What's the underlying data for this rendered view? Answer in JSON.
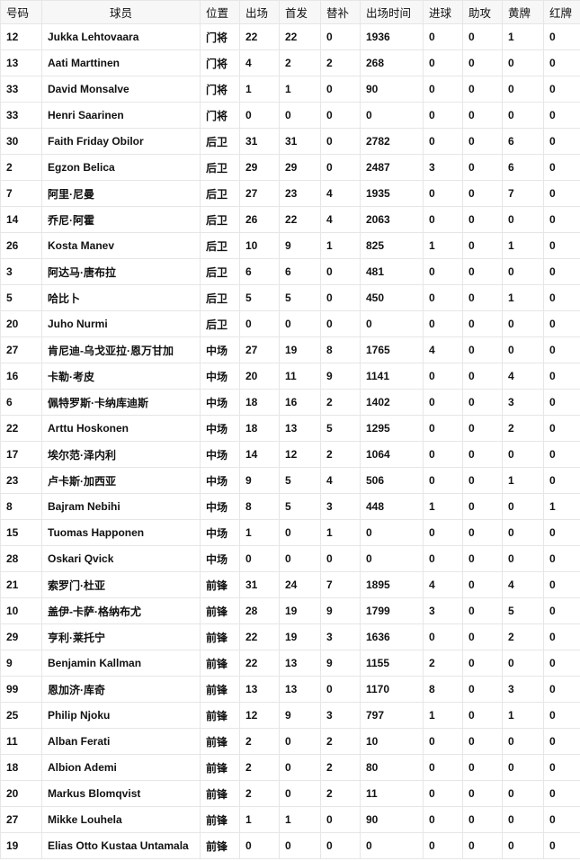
{
  "headers": [
    "号码",
    "球员",
    "位置",
    "出场",
    "首发",
    "替补",
    "出场时间",
    "进球",
    "助攻",
    "黄牌",
    "红牌"
  ],
  "rows": [
    [
      "12",
      "Jukka Lehtovaara",
      "门将",
      "22",
      "22",
      "0",
      "1936",
      "0",
      "0",
      "1",
      "0"
    ],
    [
      "13",
      "Aati Marttinen",
      "门将",
      "4",
      "2",
      "2",
      "268",
      "0",
      "0",
      "0",
      "0"
    ],
    [
      "33",
      "David Monsalve",
      "门将",
      "1",
      "1",
      "0",
      "90",
      "0",
      "0",
      "0",
      "0"
    ],
    [
      "33",
      "Henri Saarinen",
      "门将",
      "0",
      "0",
      "0",
      "0",
      "0",
      "0",
      "0",
      "0"
    ],
    [
      "30",
      "Faith Friday Obilor",
      "后卫",
      "31",
      "31",
      "0",
      "2782",
      "0",
      "0",
      "6",
      "0"
    ],
    [
      "2",
      "Egzon Belica",
      "后卫",
      "29",
      "29",
      "0",
      "2487",
      "3",
      "0",
      "6",
      "0"
    ],
    [
      "7",
      "阿里·尼曼",
      "后卫",
      "27",
      "23",
      "4",
      "1935",
      "0",
      "0",
      "7",
      "0"
    ],
    [
      "14",
      "乔尼·阿霍",
      "后卫",
      "26",
      "22",
      "4",
      "2063",
      "0",
      "0",
      "0",
      "0"
    ],
    [
      "26",
      "Kosta Manev",
      "后卫",
      "10",
      "9",
      "1",
      "825",
      "1",
      "0",
      "1",
      "0"
    ],
    [
      "3",
      "阿达马·唐布拉",
      "后卫",
      "6",
      "6",
      "0",
      "481",
      "0",
      "0",
      "0",
      "0"
    ],
    [
      "5",
      "哈比卜",
      "后卫",
      "5",
      "5",
      "0",
      "450",
      "0",
      "0",
      "1",
      "0"
    ],
    [
      "20",
      "Juho Nurmi",
      "后卫",
      "0",
      "0",
      "0",
      "0",
      "0",
      "0",
      "0",
      "0"
    ],
    [
      "27",
      "肯尼迪-乌戈亚拉·恩万甘加",
      "中场",
      "27",
      "19",
      "8",
      "1765",
      "4",
      "0",
      "0",
      "0"
    ],
    [
      "16",
      "卡勒·考皮",
      "中场",
      "20",
      "11",
      "9",
      "1141",
      "0",
      "0",
      "4",
      "0"
    ],
    [
      "6",
      "佩特罗斯·卡纳库迪斯",
      "中场",
      "18",
      "16",
      "2",
      "1402",
      "0",
      "0",
      "3",
      "0"
    ],
    [
      "22",
      "Arttu Hoskonen",
      "中场",
      "18",
      "13",
      "5",
      "1295",
      "0",
      "0",
      "2",
      "0"
    ],
    [
      "17",
      "埃尔范·泽内利",
      "中场",
      "14",
      "12",
      "2",
      "1064",
      "0",
      "0",
      "0",
      "0"
    ],
    [
      "23",
      "卢卡斯·加西亚",
      "中场",
      "9",
      "5",
      "4",
      "506",
      "0",
      "0",
      "1",
      "0"
    ],
    [
      "8",
      "Bajram Nebihi",
      "中场",
      "8",
      "5",
      "3",
      "448",
      "1",
      "0",
      "0",
      "1"
    ],
    [
      "15",
      "Tuomas Happonen",
      "中场",
      "1",
      "0",
      "1",
      "0",
      "0",
      "0",
      "0",
      "0"
    ],
    [
      "28",
      "Oskari Qvick",
      "中场",
      "0",
      "0",
      "0",
      "0",
      "0",
      "0",
      "0",
      "0"
    ],
    [
      "21",
      "索罗门·杜亚",
      "前锋",
      "31",
      "24",
      "7",
      "1895",
      "4",
      "0",
      "4",
      "0"
    ],
    [
      "10",
      "盖伊-卡萨·格纳布尤",
      "前锋",
      "28",
      "19",
      "9",
      "1799",
      "3",
      "0",
      "5",
      "0"
    ],
    [
      "29",
      "亨利·莱托宁",
      "前锋",
      "22",
      "19",
      "3",
      "1636",
      "0",
      "0",
      "2",
      "0"
    ],
    [
      "9",
      "Benjamin Kallman",
      "前锋",
      "22",
      "13",
      "9",
      "1155",
      "2",
      "0",
      "0",
      "0"
    ],
    [
      "99",
      "恩加济·库奇",
      "前锋",
      "13",
      "13",
      "0",
      "1170",
      "8",
      "0",
      "3",
      "0"
    ],
    [
      "25",
      "Philip Njoku",
      "前锋",
      "12",
      "9",
      "3",
      "797",
      "1",
      "0",
      "1",
      "0"
    ],
    [
      "11",
      "Alban Ferati",
      "前锋",
      "2",
      "0",
      "2",
      "10",
      "0",
      "0",
      "0",
      "0"
    ],
    [
      "18",
      "Albion Ademi",
      "前锋",
      "2",
      "0",
      "2",
      "80",
      "0",
      "0",
      "0",
      "0"
    ],
    [
      "20",
      "Markus Blomqvist",
      "前锋",
      "2",
      "0",
      "2",
      "11",
      "0",
      "0",
      "0",
      "0"
    ],
    [
      "27",
      "Mikke Louhela",
      "前锋",
      "1",
      "1",
      "0",
      "90",
      "0",
      "0",
      "0",
      "0"
    ],
    [
      "19",
      "Elias Otto Kustaa Untamala",
      "前锋",
      "0",
      "0",
      "0",
      "0",
      "0",
      "0",
      "0",
      "0"
    ]
  ]
}
